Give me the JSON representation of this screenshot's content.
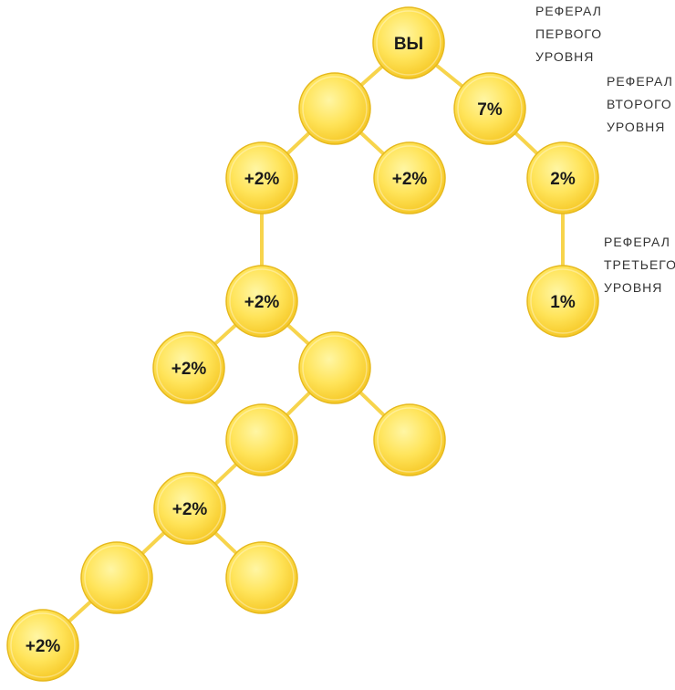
{
  "colors": {
    "coin_light": "#fff6a4",
    "coin_mid": "#ffe45a",
    "coin_dark": "#f6c928",
    "coin_edge": "#e6b91e",
    "connector": "#f7d44c",
    "text": "#1a1a1a"
  },
  "nodes": [
    {
      "id": "you",
      "label": "ВЫ"
    },
    {
      "id": "l1",
      "label": "7%"
    },
    {
      "id": "l2",
      "label": "2%"
    },
    {
      "id": "l3",
      "label": "1%"
    },
    {
      "id": "a",
      "label": ""
    },
    {
      "id": "b",
      "label": "+2%"
    },
    {
      "id": "c",
      "label": "+2%"
    },
    {
      "id": "d",
      "label": "+2%"
    },
    {
      "id": "e",
      "label": "+2%"
    },
    {
      "id": "f",
      "label": ""
    },
    {
      "id": "g",
      "label": ""
    },
    {
      "id": "h",
      "label": ""
    },
    {
      "id": "i",
      "label": "+2%"
    },
    {
      "id": "j",
      "label": ""
    },
    {
      "id": "k",
      "label": ""
    },
    {
      "id": "m",
      "label": "+2%"
    }
  ],
  "edges": [
    [
      "you",
      "a"
    ],
    [
      "you",
      "l1"
    ],
    [
      "l1",
      "l2"
    ],
    [
      "l2",
      "l3"
    ],
    [
      "a",
      "b"
    ],
    [
      "a",
      "c"
    ],
    [
      "b",
      "d"
    ],
    [
      "d",
      "e"
    ],
    [
      "d",
      "f"
    ],
    [
      "f",
      "g"
    ],
    [
      "f",
      "h"
    ],
    [
      "g",
      "i"
    ],
    [
      "i",
      "j"
    ],
    [
      "i",
      "k"
    ],
    [
      "j",
      "m"
    ]
  ],
  "referral_labels": {
    "first": [
      "РЕФЕРАЛ",
      "ПЕРВОГО",
      "УРОВНЯ"
    ],
    "second": [
      "РЕФЕРАЛ",
      "ВТОРОГО",
      "УРОВНЯ"
    ],
    "third": [
      "РЕФЕРАЛ",
      "ТРЕТЬЕГО",
      "УРОВНЯ"
    ]
  }
}
